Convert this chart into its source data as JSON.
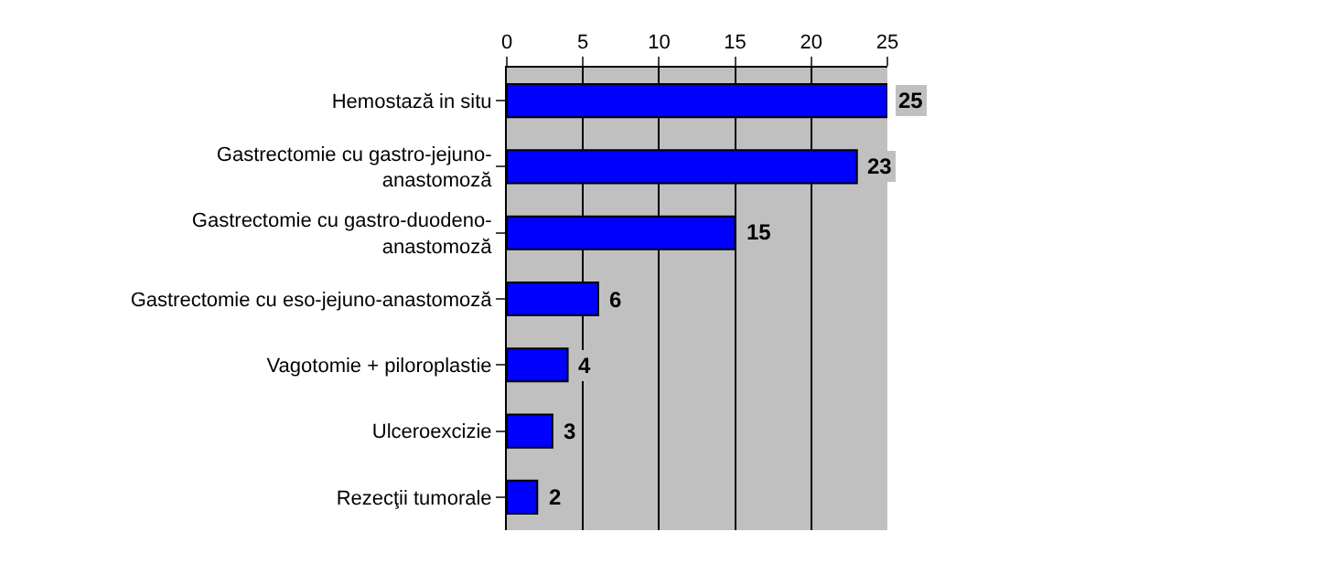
{
  "chart_data": {
    "type": "bar",
    "orientation": "horizontal",
    "categories": [
      "Hemostază in situ",
      "Gastrectomie cu gastro-jejuno-anastomoză",
      "Gastrectomie cu gastro-duodeno-anastomoză",
      "Gastrectomie cu eso-jejuno-anastomoză",
      "Vagotomie + piloroplastie",
      "Ulceroexcizie",
      "Rezecţii tumorale"
    ],
    "values": [
      25,
      23,
      15,
      6,
      4,
      3,
      2
    ],
    "color": "#0000ff",
    "xlim": [
      0,
      25
    ],
    "xticks": [
      0,
      5,
      10,
      15,
      20,
      25
    ],
    "grid": "x",
    "data_labels": true
  }
}
